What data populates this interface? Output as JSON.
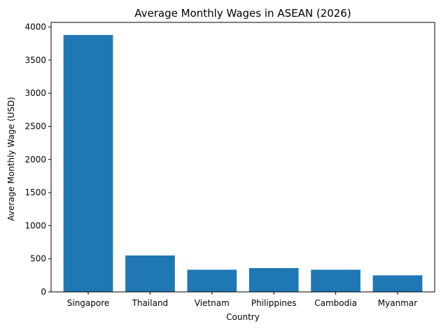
{
  "chart_data": {
    "type": "bar",
    "title": "Average Monthly Wages in ASEAN (2026)",
    "xlabel": "Country",
    "ylabel": "Average Monthly Wage (USD)",
    "categories": [
      "Singapore",
      "Thailand",
      "Vietnam",
      "Philippines",
      "Cambodia",
      "Myanmar"
    ],
    "values": [
      3880,
      550,
      335,
      360,
      335,
      250
    ],
    "ylim": [
      0,
      4070
    ],
    "yticks": [
      0,
      500,
      1000,
      1500,
      2000,
      2500,
      3000,
      3500,
      4000
    ],
    "grid": false,
    "bar_color": "#1f77b4"
  }
}
